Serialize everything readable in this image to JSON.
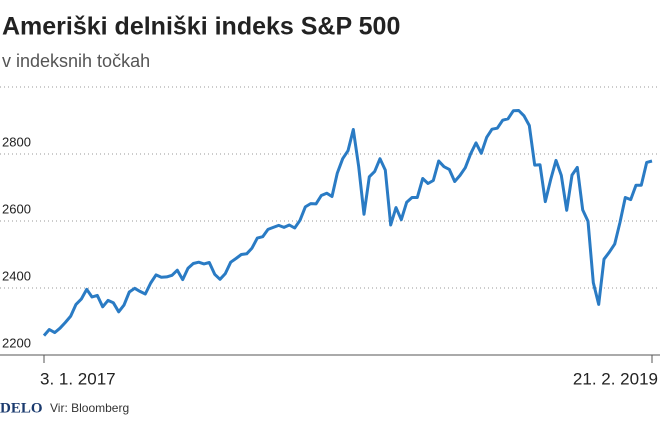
{
  "chart_data": {
    "type": "line",
    "title": "Ameriški delniški indeks S&P 500",
    "subtitle": "v indeksnih točkah",
    "logo": "DELO",
    "source": "Vir: Bloomberg",
    "color": "#2a7bc4",
    "ylim": [
      2200,
      3000
    ],
    "yticks": [
      2200,
      2400,
      2600,
      2800
    ],
    "grid": true,
    "categories": [
      "3. 1. 2017",
      null,
      null,
      null,
      null,
      null,
      null,
      null,
      null,
      null,
      null,
      null,
      null,
      null,
      null,
      null,
      null,
      null,
      null,
      null,
      null,
      null,
      null,
      null,
      null,
      null,
      null,
      null,
      null,
      null,
      null,
      null,
      null,
      null,
      null,
      null,
      null,
      null,
      null,
      null,
      null,
      null,
      null,
      null,
      null,
      null,
      null,
      null,
      null,
      null,
      null,
      null,
      null,
      null,
      null,
      null,
      null,
      null,
      null,
      null,
      null,
      null,
      null,
      null,
      null,
      null,
      null,
      null,
      null,
      null,
      null,
      null,
      null,
      null,
      null,
      null,
      null,
      null,
      null,
      null,
      null,
      null,
      null,
      null,
      null,
      null,
      null,
      null,
      null,
      null,
      null,
      null,
      null,
      null,
      null,
      null,
      null,
      null,
      null,
      null,
      null,
      null,
      null,
      null,
      null,
      null,
      null,
      null,
      null,
      null,
      null,
      null,
      null,
      null,
      "21. 2. 2019"
    ],
    "values": [
      2258,
      2276,
      2267,
      2280,
      2297,
      2316,
      2351,
      2367,
      2396,
      2373,
      2378,
      2344,
      2363,
      2356,
      2329,
      2349,
      2388,
      2399,
      2390,
      2382,
      2415,
      2439,
      2432,
      2433,
      2438,
      2453,
      2425,
      2459,
      2473,
      2477,
      2472,
      2476,
      2441,
      2426,
      2443,
      2477,
      2488,
      2500,
      2502,
      2519,
      2549,
      2553,
      2575,
      2581,
      2587,
      2581,
      2588,
      2579,
      2602,
      2642,
      2652,
      2651,
      2676,
      2683,
      2673,
      2743,
      2786,
      2810,
      2873,
      2762,
      2620,
      2732,
      2748,
      2786,
      2752,
      2588,
      2640,
      2604,
      2656,
      2670,
      2670,
      2727,
      2712,
      2721,
      2779,
      2762,
      2754,
      2718,
      2736,
      2759,
      2801,
      2833,
      2802,
      2850,
      2874,
      2877,
      2901,
      2905,
      2929,
      2930,
      2914,
      2885,
      2767,
      2768,
      2658,
      2724,
      2781,
      2736,
      2632,
      2737,
      2760,
      2633,
      2599,
      2416,
      2351,
      2486,
      2507,
      2531,
      2596,
      2670,
      2664,
      2707,
      2707,
      2775,
      2779
    ]
  }
}
